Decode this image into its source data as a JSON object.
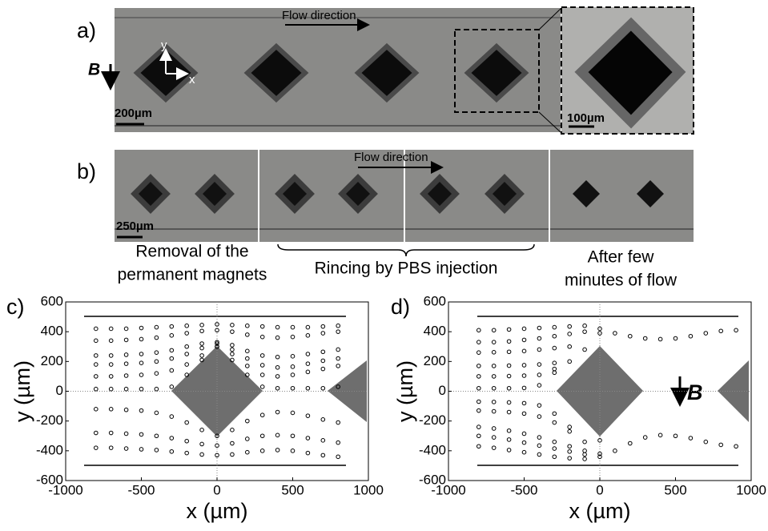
{
  "panel_a": {
    "label": "a)",
    "flow_label": "Flow direction",
    "field_label": "B",
    "axis_y_label": "y",
    "axis_x_label": "x",
    "scale_label": "200µm",
    "inset_scale_label": "100µm"
  },
  "panel_b": {
    "label": "b)",
    "flow_label": "Flow direction",
    "scale_label": "250µm",
    "captions": [
      [
        "Removal of the",
        "permanent magnets"
      ],
      [
        "Rincing by PBS injection"
      ],
      [
        "After few",
        "minutes of flow"
      ]
    ]
  },
  "chart_data": [
    {
      "type": "scatter",
      "label": "c)",
      "x_label": "x (µm)",
      "y_label": "y (µm)",
      "xlim": [
        -1000,
        1000
      ],
      "ylim": [
        -600,
        600
      ],
      "xticks": [
        -1000,
        -500,
        0,
        500,
        1000
      ],
      "yticks": [
        -600,
        -400,
        -200,
        0,
        200,
        400,
        600
      ],
      "x": [
        -800,
        -700,
        -600,
        -500,
        -400,
        -300,
        -200,
        -100,
        0,
        100,
        200,
        300,
        400,
        500,
        600,
        700,
        800
      ],
      "series": [
        {
          "color": "#000000",
          "values": [
            420,
            420,
            420,
            425,
            430,
            435,
            440,
            445,
            450,
            445,
            440,
            435,
            430,
            430,
            430,
            435,
            440
          ]
        },
        {
          "color": "#000000",
          "values": [
            340,
            340,
            345,
            350,
            360,
            375,
            390,
            405,
            410,
            400,
            380,
            365,
            360,
            365,
            375,
            390,
            400
          ]
        },
        {
          "color": "#000000",
          "values": [
            240,
            240,
            245,
            250,
            260,
            275,
            300,
            320,
            330,
            310,
            270,
            240,
            230,
            235,
            250,
            265,
            280
          ]
        },
        {
          "color": "#000000",
          "values": [
            180,
            180,
            185,
            190,
            200,
            220,
            250,
            290,
            320,
            280,
            220,
            175,
            160,
            165,
            185,
            205,
            220
          ]
        },
        {
          "color": "#000000",
          "values": [
            100,
            100,
            105,
            110,
            120,
            140,
            180,
            240,
            300,
            250,
            170,
            110,
            100,
            110,
            130,
            150,
            170
          ]
        },
        {
          "color": "#000000",
          "values": [
            15,
            15,
            15,
            15,
            15,
            30,
            110,
            210,
            300,
            210,
            110,
            30,
            20,
            20,
            20,
            20,
            30
          ]
        },
        {
          "color": "#000000",
          "values": [
            -120,
            -120,
            -125,
            -130,
            -145,
            -170,
            -210,
            -260,
            -300,
            -260,
            -200,
            -160,
            -140,
            -145,
            -165,
            -190,
            -210
          ]
        },
        {
          "color": "#000000",
          "values": [
            -280,
            -280,
            -285,
            -290,
            -300,
            -315,
            -335,
            -355,
            -365,
            -350,
            -320,
            -300,
            -295,
            -300,
            -315,
            -330,
            -345
          ]
        },
        {
          "color": "#000000",
          "values": [
            -380,
            -380,
            -385,
            -390,
            -395,
            -405,
            -415,
            -425,
            -430,
            -425,
            -410,
            -400,
            -395,
            -400,
            -415,
            -430,
            -440
          ]
        }
      ]
    },
    {
      "type": "scatter",
      "label": "d)",
      "x_label": "x (µm)",
      "y_label": "y (µm)",
      "annotation": "B",
      "xlim": [
        -1000,
        1000
      ],
      "ylim": [
        -600,
        600
      ],
      "xticks": [
        -1000,
        -500,
        0,
        500,
        1000
      ],
      "yticks": [
        -600,
        -400,
        -200,
        0,
        200,
        400,
        600
      ],
      "x": [
        -800,
        -700,
        -600,
        -500,
        -400,
        -300,
        -200,
        -100,
        0,
        100,
        200,
        300,
        400,
        500,
        600,
        700,
        800,
        900
      ],
      "series": [
        {
          "color": "#000000",
          "values": [
            410,
            410,
            415,
            420,
            425,
            430,
            435,
            440,
            420,
            390,
            370,
            355,
            350,
            355,
            370,
            390,
            405,
            410
          ]
        },
        {
          "color": "#000000",
          "values": [
            330,
            330,
            335,
            345,
            355,
            370,
            385,
            400,
            390,
            null,
            null,
            null,
            null,
            null,
            null,
            null,
            null,
            null
          ]
        },
        {
          "color": "#000000",
          "values": [
            260,
            262,
            265,
            270,
            280,
            290,
            300,
            280,
            null,
            null,
            null,
            null,
            null,
            null,
            null,
            null,
            null,
            null
          ]
        },
        {
          "color": "#000000",
          "values": [
            170,
            170,
            172,
            175,
            180,
            190,
            200,
            null,
            null,
            null,
            null,
            null,
            null,
            null,
            null,
            null,
            null,
            null
          ]
        },
        {
          "color": "#000000",
          "values": [
            100,
            100,
            102,
            105,
            110,
            125,
            null,
            null,
            null,
            null,
            null,
            null,
            null,
            null,
            null,
            null,
            null,
            null
          ]
        },
        {
          "color": "#000000",
          "values": [
            20,
            20,
            20,
            22,
            40,
            150,
            null,
            null,
            null,
            null,
            null,
            null,
            null,
            null,
            null,
            null,
            null,
            null
          ]
        },
        {
          "color": "#000000",
          "values": [
            -70,
            -72,
            -75,
            -80,
            -95,
            -150,
            -240,
            null,
            null,
            null,
            null,
            null,
            null,
            null,
            null,
            null,
            null,
            null
          ]
        },
        {
          "color": "#000000",
          "values": [
            -130,
            -135,
            -140,
            -150,
            -170,
            -210,
            -270,
            -340,
            -330,
            null,
            null,
            null,
            null,
            null,
            null,
            null,
            null,
            null
          ]
        },
        {
          "color": "#000000",
          "values": [
            -240,
            -250,
            -265,
            -285,
            -310,
            -340,
            -370,
            -400,
            -420,
            -400,
            -350,
            -310,
            -295,
            -300,
            -315,
            -340,
            -360,
            -370
          ]
        },
        {
          "color": "#000000",
          "values": [
            -300,
            -310,
            -325,
            -345,
            -365,
            -385,
            -405,
            -425,
            -440,
            null,
            null,
            null,
            null,
            null,
            null,
            null,
            null,
            null
          ]
        },
        {
          "color": "#000000",
          "values": [
            -370,
            -380,
            -395,
            -410,
            -425,
            -440,
            -450,
            -455,
            null,
            null,
            null,
            null,
            null,
            null,
            null,
            null,
            null,
            null
          ]
        }
      ]
    }
  ]
}
